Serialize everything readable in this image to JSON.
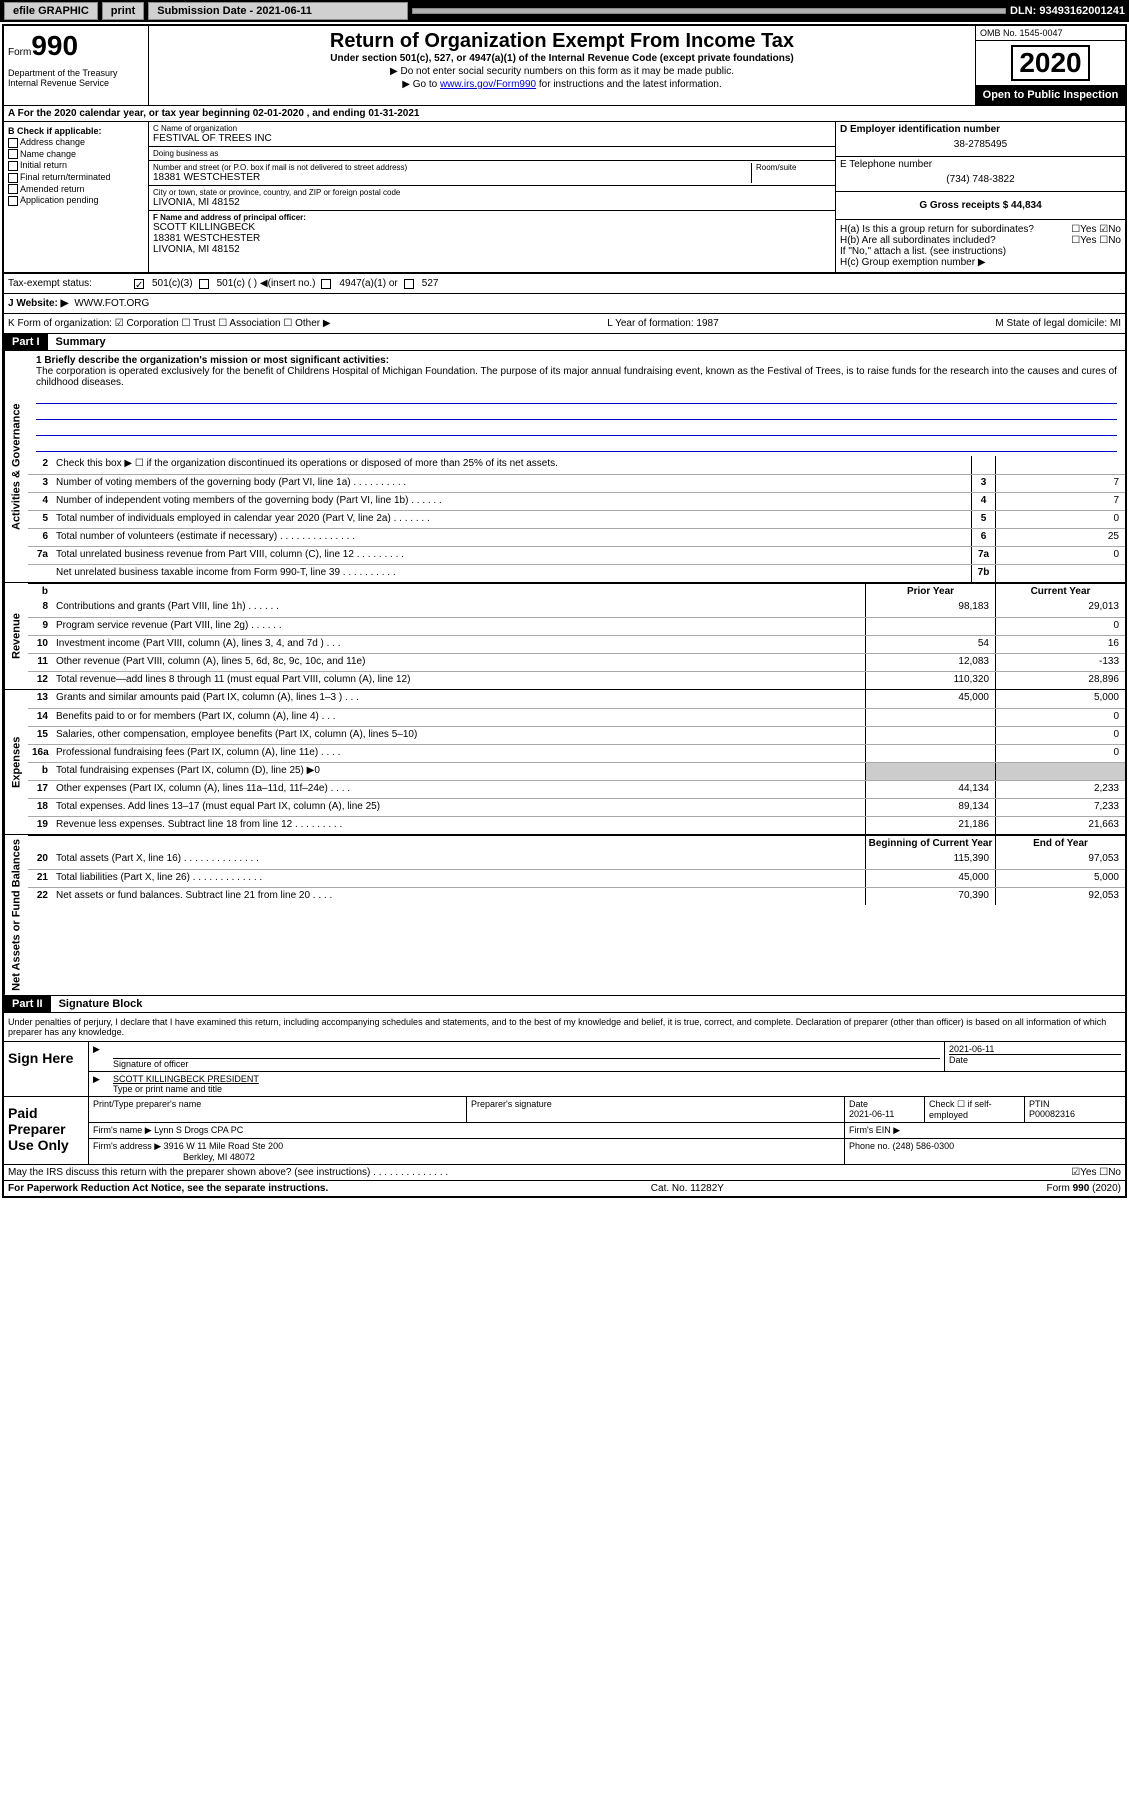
{
  "topbar": {
    "efile": "efile GRAPHIC",
    "print": "print",
    "sub_label": "Submission Date - 2021-06-11",
    "dln": "DLN: 93493162001241"
  },
  "header": {
    "form_word": "Form",
    "form_no": "990",
    "dept": "Department of the Treasury\nInternal Revenue Service",
    "title": "Return of Organization Exempt From Income Tax",
    "subtitle": "Under section 501(c), 527, or 4947(a)(1) of the Internal Revenue Code (except private foundations)",
    "note1": "▶ Do not enter social security numbers on this form as it may be made public.",
    "note2_prefix": "▶ Go to ",
    "note2_link": "www.irs.gov/Form990",
    "note2_suffix": " for instructions and the latest information.",
    "omb": "OMB No. 1545-0047",
    "year": "2020",
    "public": "Open to Public Inspection"
  },
  "row_a": "A For the 2020 calendar year, or tax year beginning 02-01-2020   , and ending 01-31-2021",
  "col_b": {
    "header": "B Check if applicable:",
    "opts": [
      "Address change",
      "Name change",
      "Initial return",
      "Final return/terminated",
      "Amended return",
      "Application pending"
    ]
  },
  "col_c": {
    "name_lbl": "C Name of organization",
    "name": "FESTIVAL OF TREES INC",
    "dba_lbl": "Doing business as",
    "dba": "",
    "addr_lbl": "Number and street (or P.O. box if mail is not delivered to street address)",
    "room_lbl": "Room/suite",
    "addr": "18381 WESTCHESTER",
    "city_lbl": "City or town, state or province, country, and ZIP or foreign postal code",
    "city": "LIVONIA, MI  48152",
    "f_lbl": "F Name and address of principal officer:",
    "f_name": "SCOTT KILLINGBECK",
    "f_addr": "18381 WESTCHESTER",
    "f_city": "LIVONIA, MI  48152"
  },
  "col_d": {
    "d_lbl": "D Employer identification number",
    "d_val": "38-2785495",
    "e_lbl": "E Telephone number",
    "e_val": "(734) 748-3822",
    "g_lbl": "G Gross receipts $ 44,834"
  },
  "h": {
    "ha": "H(a)  Is this a group return for subordinates?",
    "ha_ans": "☐Yes ☑No",
    "hb": "H(b)  Are all subordinates included?",
    "hb_ans": "☐Yes ☐No",
    "hb_note": "If \"No,\" attach a list. (see instructions)",
    "hc": "H(c)  Group exemption number ▶"
  },
  "tax_status": {
    "label": "Tax-exempt status:",
    "v1": "501(c)(3)",
    "v2": "501(c) (  ) ◀(insert no.)",
    "v3": "4947(a)(1) or",
    "v4": "527"
  },
  "website": {
    "label": "J   Website: ▶",
    "val": "WWW.FOT.ORG"
  },
  "k_row": {
    "k": "K Form of organization:  ☑ Corporation  ☐ Trust  ☐ Association  ☐ Other ▶",
    "l": "L Year of formation: 1987",
    "m": "M State of legal domicile: MI"
  },
  "part1": {
    "tag": "Part I",
    "title": "Summary"
  },
  "mission": {
    "label": "1  Briefly describe the organization's mission or most significant activities:",
    "text": "The corporation is operated exclusively for the benefit of Childrens Hospital of Michigan Foundation. The purpose of its major annual fundraising event, known as the Festival of Trees, is to raise funds for the research into the causes and cures of childhood diseases."
  },
  "activities_lines": [
    {
      "no": "2",
      "desc": "Check this box ▶ ☐  if the organization discontinued its operations or disposed of more than 25% of its net assets.",
      "box": "",
      "val": ""
    },
    {
      "no": "3",
      "desc": "Number of voting members of the governing body (Part VI, line 1a)  .   .   .   .   .   .   .   .   .   .",
      "box": "3",
      "val": "7"
    },
    {
      "no": "4",
      "desc": "Number of independent voting members of the governing body (Part VI, line 1b)  .   .   .   .   .   .",
      "box": "4",
      "val": "7"
    },
    {
      "no": "5",
      "desc": "Total number of individuals employed in calendar year 2020 (Part V, line 2a)  .   .   .   .   .   .   .",
      "box": "5",
      "val": "0"
    },
    {
      "no": "6",
      "desc": "Total number of volunteers (estimate if necessary)   .   .   .   .   .   .   .   .   .   .   .   .   .   .",
      "box": "6",
      "val": "25"
    },
    {
      "no": "7a",
      "desc": "Total unrelated business revenue from Part VIII, column (C), line 12   .   .   .   .   .   .   .   .   .",
      "box": "7a",
      "val": "0"
    },
    {
      "no": "",
      "desc": "Net unrelated business taxable income from Form 990-T, line 39   .   .   .   .   .   .   .   .   .   .",
      "box": "7b",
      "val": ""
    }
  ],
  "col_hdr_prior": "Prior Year",
  "col_hdr_current": "Current Year",
  "revenue_lines": [
    {
      "no": "8",
      "desc": "Contributions and grants (Part VIII, line 1h)   .   .   .   .   .   .",
      "prior": "98,183",
      "curr": "29,013"
    },
    {
      "no": "9",
      "desc": "Program service revenue (Part VIII, line 2g)   .   .   .   .   .   .",
      "prior": "",
      "curr": "0"
    },
    {
      "no": "10",
      "desc": "Investment income (Part VIII, column (A), lines 3, 4, and 7d )   .   .   .",
      "prior": "54",
      "curr": "16"
    },
    {
      "no": "11",
      "desc": "Other revenue (Part VIII, column (A), lines 5, 6d, 8c, 9c, 10c, and 11e)",
      "prior": "12,083",
      "curr": "-133"
    },
    {
      "no": "12",
      "desc": "Total revenue—add lines 8 through 11 (must equal Part VIII, column (A), line 12)",
      "prior": "110,320",
      "curr": "28,896"
    }
  ],
  "expense_lines": [
    {
      "no": "13",
      "desc": "Grants and similar amounts paid (Part IX, column (A), lines 1–3 )  .   .   .",
      "prior": "45,000",
      "curr": "5,000"
    },
    {
      "no": "14",
      "desc": "Benefits paid to or for members (Part IX, column (A), line 4)   .   .   .",
      "prior": "",
      "curr": "0"
    },
    {
      "no": "15",
      "desc": "Salaries, other compensation, employee benefits (Part IX, column (A), lines 5–10)",
      "prior": "",
      "curr": "0"
    },
    {
      "no": "16a",
      "desc": "Professional fundraising fees (Part IX, column (A), line 11e)   .   .   .   .",
      "prior": "",
      "curr": "0"
    },
    {
      "no": "b",
      "desc": "Total fundraising expenses (Part IX, column (D), line 25) ▶0",
      "prior": "GREY",
      "curr": "GREY"
    },
    {
      "no": "17",
      "desc": "Other expenses (Part IX, column (A), lines 11a–11d, 11f–24e)   .   .   .   .",
      "prior": "44,134",
      "curr": "2,233"
    },
    {
      "no": "18",
      "desc": "Total expenses. Add lines 13–17 (must equal Part IX, column (A), line 25)",
      "prior": "89,134",
      "curr": "7,233"
    },
    {
      "no": "19",
      "desc": "Revenue less expenses. Subtract line 18 from line 12  .   .   .   .   .   .   .   .   .",
      "prior": "21,186",
      "curr": "21,663"
    }
  ],
  "col_hdr_begin": "Beginning of Current Year",
  "col_hdr_end": "End of Year",
  "netassets_lines": [
    {
      "no": "20",
      "desc": "Total assets (Part X, line 16)  .   .   .   .   .   .   .   .   .   .   .   .   .   .",
      "prior": "115,390",
      "curr": "97,053"
    },
    {
      "no": "21",
      "desc": "Total liabilities (Part X, line 26)  .   .   .   .   .   .   .   .   .   .   .   .   .",
      "prior": "45,000",
      "curr": "5,000"
    },
    {
      "no": "22",
      "desc": "Net assets or fund balances. Subtract line 21 from line 20   .   .   .   .",
      "prior": "70,390",
      "curr": "92,053"
    }
  ],
  "part2": {
    "tag": "Part II",
    "title": "Signature Block"
  },
  "sig": {
    "penalty": "Under penalties of perjury, I declare that I have examined this return, including accompanying schedules and statements, and to the best of my knowledge and belief, it is true, correct, and complete. Declaration of preparer (other than officer) is based on all information of which preparer has any knowledge.",
    "sign_here": "Sign Here",
    "sig_officer_lbl": "Signature of officer",
    "date_lbl": "Date",
    "date_val": "2021-06-11",
    "name_title": "SCOTT KILLINGBECK  PRESIDENT",
    "name_title_lbl": "Type or print name and title",
    "paid": "Paid Preparer Use Only",
    "prep_name_lbl": "Print/Type preparer's name",
    "prep_sig_lbl": "Preparer's signature",
    "prep_date_lbl": "Date",
    "prep_date": "2021-06-11",
    "check_lbl": "Check ☐ if self-employed",
    "ptin_lbl": "PTIN",
    "ptin": "P00082316",
    "firm_name_lbl": "Firm's name    ▶",
    "firm_name": "Lynn S Drogs CPA PC",
    "firm_ein_lbl": "Firm's EIN ▶",
    "firm_addr_lbl": "Firm's address ▶",
    "firm_addr1": "3916 W 11 Mile Road Ste 200",
    "firm_addr2": "Berkley, MI  48072",
    "phone_lbl": "Phone no. (248) 586-0300",
    "discuss": "May the IRS discuss this return with the preparer shown above? (see instructions)   .   .   .   .   .   .   .   .   .   .   .   .   .   .",
    "discuss_ans": "☑Yes  ☐No"
  },
  "footer": {
    "left": "For Paperwork Reduction Act Notice, see the separate instructions.",
    "mid": "Cat. No. 11282Y",
    "right": "Form 990 (2020)"
  },
  "side_labels": {
    "act": "Activities & Governance",
    "rev": "Revenue",
    "exp": "Expenses",
    "net": "Net Assets or Fund Balances"
  }
}
